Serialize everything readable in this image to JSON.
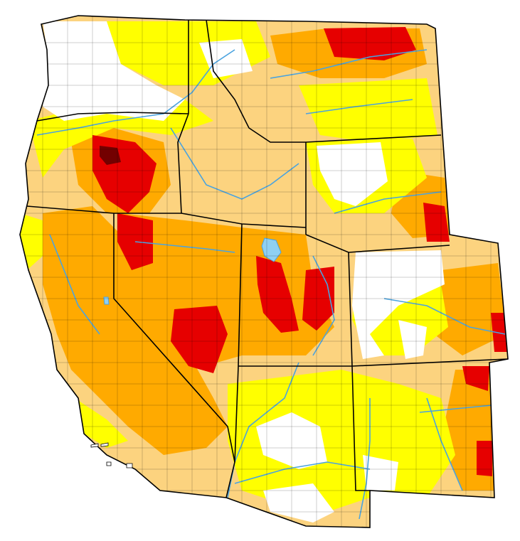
{
  "map": {
    "region": "western-united-states",
    "layer": "drought-monitor",
    "colors": {
      "background": "#ffffff",
      "none": "#ffffff",
      "d0": "#ffff00",
      "d1": "#fcd37f",
      "d2": "#ffaa00",
      "d3": "#e60000",
      "d4": "#730000",
      "water": "#4aa3df",
      "lake": "#8fd0f2",
      "state_border": "#000000",
      "county_border": "#000000"
    }
  }
}
